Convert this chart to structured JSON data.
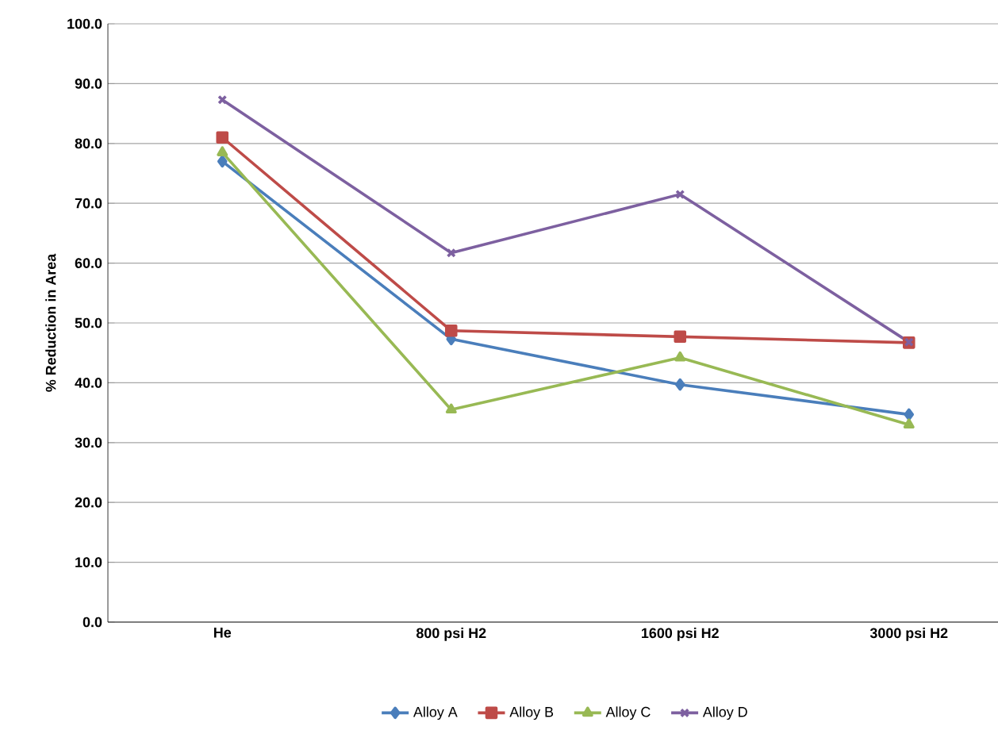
{
  "chart_data": {
    "type": "line",
    "ylabel": "% Reduction in Area",
    "categories": [
      "He",
      "800 psi H2",
      "1600 psi H2",
      "3000 psi H2"
    ],
    "series": [
      {
        "name": "Alloy A",
        "color": "#4a7ebb",
        "marker": "diamond",
        "values": [
          77.0,
          47.3,
          39.7,
          34.7
        ]
      },
      {
        "name": "Alloy B",
        "color": "#be4b48",
        "marker": "square",
        "values": [
          81.0,
          48.7,
          47.7,
          46.7
        ]
      },
      {
        "name": "Alloy C",
        "color": "#98b954",
        "marker": "triangle",
        "values": [
          78.5,
          35.5,
          44.2,
          33.0
        ]
      },
      {
        "name": "Alloy D",
        "color": "#7d60a0",
        "marker": "cross",
        "values": [
          87.3,
          61.7,
          71.5,
          46.8
        ]
      }
    ],
    "ylim": [
      0,
      100
    ],
    "yticks": [
      {
        "value": 0,
        "label": "0.0"
      },
      {
        "value": 10,
        "label": "10.0"
      },
      {
        "value": 20,
        "label": "20.0"
      },
      {
        "value": 30,
        "label": "30.0"
      },
      {
        "value": 40,
        "label": "40.0"
      },
      {
        "value": 50,
        "label": "50.0"
      },
      {
        "value": 60,
        "label": "60.0"
      },
      {
        "value": 70,
        "label": "70.0"
      },
      {
        "value": 80,
        "label": "80.0"
      },
      {
        "value": 90,
        "label": "90.0"
      },
      {
        "value": 100,
        "label": "100.0"
      }
    ],
    "grid": "y",
    "legend": "bottom",
    "line_style": "solid"
  }
}
